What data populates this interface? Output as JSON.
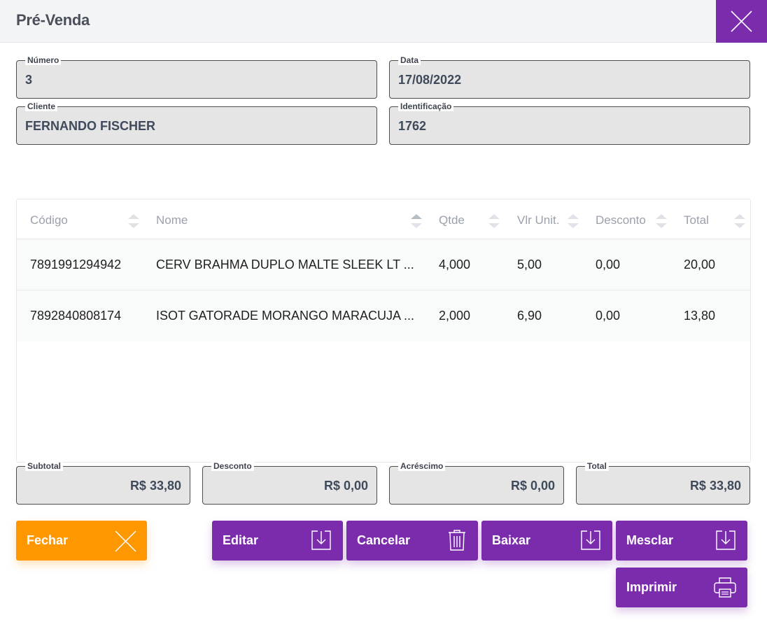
{
  "header": {
    "title": "Pré-Venda"
  },
  "fields": {
    "numero": {
      "label": "Número",
      "value": "3"
    },
    "data": {
      "label": "Data",
      "value": "17/08/2022"
    },
    "cliente": {
      "label": "Cliente",
      "value": "FERNANDO FISCHER"
    },
    "identificacao": {
      "label": "Identificação",
      "value": "1762"
    }
  },
  "table": {
    "columns": [
      "Código",
      "Nome",
      "Qtde",
      "Vlr Unit.",
      "Desconto",
      "Total"
    ],
    "rows": [
      [
        "7891991294942",
        "CERV BRAHMA DUPLO MALTE SLEEK LT ...",
        "4,000",
        "5,00",
        "0,00",
        "20,00"
      ],
      [
        "7892840808174",
        "ISOT GATORADE MORANGO MARACUJA ...",
        "2,000",
        "6,90",
        "0,00",
        "13,80"
      ]
    ]
  },
  "totals": {
    "subtotal": {
      "label": "Subtotal",
      "value": "R$ 33,80"
    },
    "desconto": {
      "label": "Desconto",
      "value": "R$ 0,00"
    },
    "acrescimo": {
      "label": "Acréscimo",
      "value": "R$ 0,00"
    },
    "total": {
      "label": "Total",
      "value": "R$ 33,80"
    }
  },
  "buttons": {
    "fechar": "Fechar",
    "editar": "Editar",
    "cancelar": "Cancelar",
    "baixar": "Baixar",
    "mesclar": "Mesclar",
    "imprimir": "Imprimir"
  },
  "colors": {
    "accent": "#7b2cad",
    "orange": "#ff9800"
  }
}
